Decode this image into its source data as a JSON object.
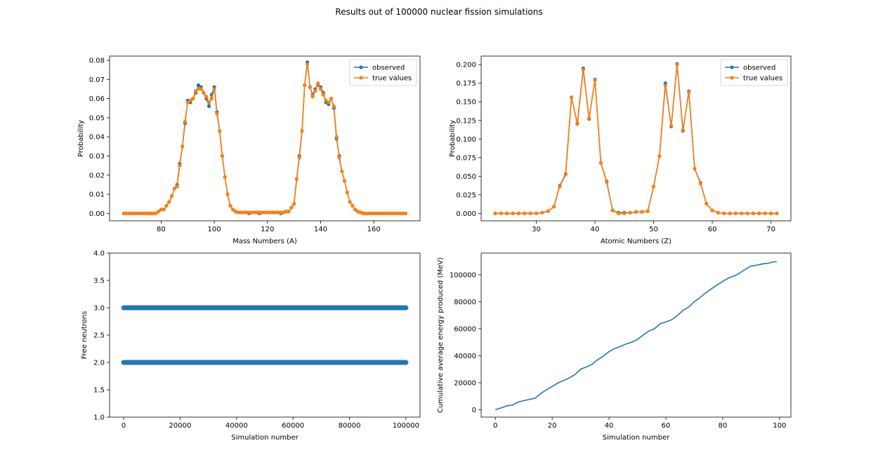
{
  "title": "Results out of 100000 nuclear fission simulations",
  "colors": {
    "observed": "#1f77b4",
    "true_values": "#ff7f0e"
  },
  "chart_data": [
    {
      "type": "line",
      "xlabel": "Mass Numbers (A)",
      "ylabel": "Probability",
      "xlim": [
        60.6,
        177.4
      ],
      "ylim": [
        -0.0039,
        0.0822
      ],
      "xticks": [
        80,
        100,
        120,
        140,
        160
      ],
      "yticks": [
        0.0,
        0.01,
        0.02,
        0.03,
        0.04,
        0.05,
        0.06,
        0.07,
        0.08
      ],
      "ytick_decimals": 2,
      "legend": "top-right",
      "x": [
        66,
        67,
        68,
        69,
        70,
        71,
        72,
        73,
        74,
        75,
        76,
        77,
        78,
        79,
        80,
        81,
        82,
        83,
        84,
        85,
        86,
        87,
        88,
        89,
        90,
        91,
        92,
        93,
        94,
        95,
        96,
        97,
        98,
        99,
        100,
        101,
        102,
        103,
        104,
        105,
        106,
        107,
        108,
        109,
        110,
        111,
        112,
        113,
        114,
        115,
        116,
        117,
        118,
        119,
        120,
        121,
        122,
        123,
        124,
        125,
        126,
        127,
        128,
        129,
        130,
        131,
        132,
        133,
        134,
        135,
        136,
        137,
        138,
        139,
        140,
        141,
        142,
        143,
        144,
        145,
        146,
        147,
        148,
        149,
        150,
        151,
        152,
        153,
        154,
        155,
        156,
        157,
        158,
        159,
        160,
        161,
        162,
        163,
        164,
        165,
        166,
        167,
        168,
        169,
        170,
        171,
        172
      ],
      "series": [
        {
          "name": "observed",
          "values": [
            0,
            0,
            0,
            0,
            0,
            0,
            0,
            0,
            0,
            0,
            0,
            0,
            0,
            0.001,
            0.002,
            0.002,
            0.004,
            0.006,
            0.009,
            0.013,
            0.015,
            0.026,
            0.035,
            0.047,
            0.059,
            0.058,
            0.06,
            0.063,
            0.067,
            0.066,
            0.063,
            0.06,
            0.056,
            0.062,
            0.066,
            0.053,
            0.043,
            0.03,
            0.019,
            0.01,
            0.004,
            0.002,
            0.001,
            0.0005,
            0.0005,
            0.0005,
            0.0005,
            0,
            0.0005,
            0.0005,
            0.0005,
            0,
            0.0005,
            0.0005,
            0.0005,
            0.0005,
            0.0005,
            0.0005,
            0.0005,
            0,
            0.0005,
            0.001,
            0.001,
            0.003,
            0.005,
            0.018,
            0.03,
            0.043,
            0.067,
            0.079,
            0.066,
            0.062,
            0.065,
            0.067,
            0.066,
            0.063,
            0.058,
            0.057,
            0.06,
            0.055,
            0.039,
            0.03,
            0.022,
            0.017,
            0.011,
            0.006,
            0.004,
            0.002,
            0.001,
            0.0005,
            0,
            0,
            0,
            0,
            0,
            0,
            0,
            0,
            0,
            0,
            0,
            0,
            0,
            0,
            0,
            0,
            0
          ]
        },
        {
          "name": "true values",
          "values": [
            0,
            0,
            0,
            0,
            0,
            0,
            0,
            0,
            0,
            0,
            0,
            0,
            0,
            0.001,
            0.002,
            0.002,
            0.004,
            0.006,
            0.009,
            0.013,
            0.014,
            0.025,
            0.035,
            0.048,
            0.058,
            0.059,
            0.06,
            0.064,
            0.065,
            0.065,
            0.063,
            0.061,
            0.058,
            0.06,
            0.065,
            0.052,
            0.043,
            0.03,
            0.019,
            0.01,
            0.004,
            0.002,
            0.001,
            0.0005,
            0.0005,
            0.0005,
            0.0005,
            0.0005,
            0.0005,
            0.0005,
            0.0005,
            0.0005,
            0.0005,
            0.0005,
            0.0005,
            0.0005,
            0.0005,
            0.0005,
            0.0005,
            0.0005,
            0.0005,
            0.001,
            0.001,
            0.003,
            0.005,
            0.018,
            0.029,
            0.043,
            0.067,
            0.078,
            0.066,
            0.061,
            0.064,
            0.068,
            0.065,
            0.062,
            0.059,
            0.058,
            0.06,
            0.056,
            0.04,
            0.029,
            0.022,
            0.017,
            0.011,
            0.006,
            0.004,
            0.002,
            0.001,
            0.0005,
            0,
            0,
            0,
            0,
            0,
            0,
            0,
            0,
            0,
            0,
            0,
            0,
            0,
            0,
            0,
            0,
            0
          ]
        }
      ]
    },
    {
      "type": "line",
      "xlabel": "Atomic Numbers (Z)",
      "ylabel": "Probability",
      "xlim": [
        20.6,
        73.4
      ],
      "ylim": [
        -0.01,
        0.2115
      ],
      "xticks": [
        30,
        40,
        50,
        60,
        70
      ],
      "yticks": [
        0.0,
        0.025,
        0.05,
        0.075,
        0.1,
        0.125,
        0.15,
        0.175,
        0.2
      ],
      "ytick_decimals": 3,
      "legend": "top-right",
      "x": [
        23,
        24,
        25,
        26,
        27,
        28,
        29,
        30,
        31,
        32,
        33,
        34,
        35,
        36,
        37,
        38,
        39,
        40,
        41,
        42,
        43,
        44,
        45,
        46,
        47,
        48,
        49,
        50,
        51,
        52,
        53,
        54,
        55,
        56,
        57,
        58,
        59,
        60,
        61,
        62,
        63,
        64,
        65,
        66,
        67,
        68,
        69,
        70,
        71
      ],
      "series": [
        {
          "name": "observed",
          "values": [
            0,
            0,
            0,
            0,
            0,
            0,
            0,
            0,
            0.001,
            0.003,
            0.009,
            0.037,
            0.053,
            0.156,
            0.121,
            0.195,
            0.127,
            0.18,
            0.068,
            0.043,
            0.004,
            0.001,
            0.001,
            0.001,
            0.002,
            0.002,
            0.003,
            0.036,
            0.077,
            0.175,
            0.117,
            0.201,
            0.111,
            0.164,
            0.06,
            0.041,
            0.013,
            0.004,
            0.001,
            0,
            0,
            0,
            0,
            0,
            0,
            0,
            0,
            0,
            0
          ]
        },
        {
          "name": "true values",
          "values": [
            0,
            0,
            0,
            0,
            0,
            0,
            0,
            0,
            0.001,
            0.003,
            0.009,
            0.036,
            0.052,
            0.156,
            0.12,
            0.193,
            0.128,
            0.179,
            0.068,
            0.042,
            0.004,
            0,
            0,
            0.001,
            0.002,
            0.002,
            0.003,
            0.036,
            0.077,
            0.172,
            0.118,
            0.2,
            0.112,
            0.163,
            0.06,
            0.04,
            0.013,
            0.004,
            0.001,
            0,
            0,
            0,
            0,
            0,
            0,
            0,
            0,
            0,
            0
          ]
        }
      ]
    },
    {
      "type": "scatter",
      "xlabel": "Simulation number",
      "ylabel": "Free neutrons",
      "xlim": [
        -5000,
        105000
      ],
      "ylim": [
        1.0,
        4.0
      ],
      "xticks": [
        0,
        20000,
        40000,
        60000,
        80000,
        100000
      ],
      "yticks": [
        1.0,
        1.5,
        2.0,
        2.5,
        3.0,
        3.5,
        4.0
      ],
      "ytick_decimals": 1,
      "series": [
        {
          "y": 3.0,
          "x_range": [
            0,
            100000
          ]
        },
        {
          "y": 2.0,
          "x_range": [
            0,
            100000
          ]
        }
      ]
    },
    {
      "type": "line",
      "xlabel": "Simulation number",
      "ylabel": "Cumulative average energy produced (MeV)",
      "xlim": [
        -5,
        104
      ],
      "ylim": [
        -5500,
        116000
      ],
      "xticks": [
        0,
        20,
        40,
        60,
        80,
        100
      ],
      "yticks": [
        0,
        20000,
        40000,
        60000,
        80000,
        100000
      ],
      "ytick_decimals": 0,
      "x": [
        0,
        2,
        4,
        6,
        8,
        10,
        12,
        14,
        16,
        18,
        20,
        22,
        24,
        26,
        28,
        30,
        32,
        34,
        36,
        38,
        40,
        42,
        44,
        46,
        48,
        50,
        52,
        54,
        56,
        58,
        60,
        62,
        64,
        66,
        68,
        70,
        72,
        74,
        76,
        78,
        80,
        82,
        84,
        86,
        88,
        90,
        92,
        94,
        96,
        98,
        99
      ],
      "series": [
        {
          "name": "",
          "values": [
            0,
            1300,
            2900,
            3400,
            5600,
            6700,
            7600,
            8500,
            12000,
            14800,
            17200,
            19800,
            21600,
            23500,
            26000,
            30000,
            31600,
            33600,
            37000,
            39700,
            43000,
            45300,
            46800,
            48700,
            50000,
            52000,
            55300,
            58200,
            60000,
            63600,
            65000,
            66600,
            69600,
            73500,
            76000,
            80000,
            83000,
            86500,
            89500,
            92400,
            95000,
            97500,
            99000,
            101200,
            104000,
            106400,
            107000,
            108000,
            108500,
            109500,
            109700
          ]
        }
      ]
    }
  ]
}
